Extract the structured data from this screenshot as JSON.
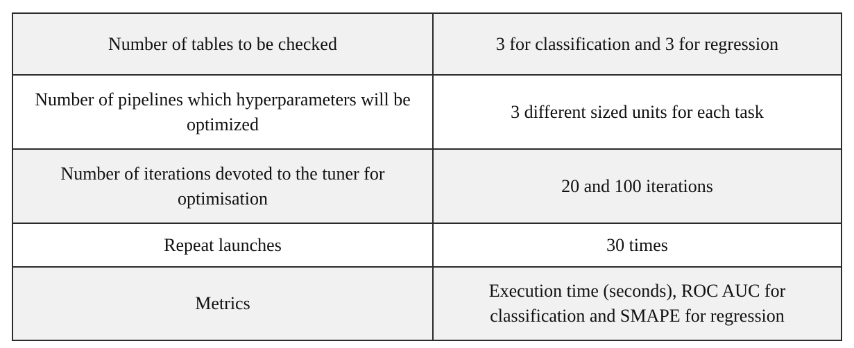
{
  "table": {
    "rows": [
      {
        "label": "Number of tables to be checked",
        "value": "3 for classification and 3 for regression"
      },
      {
        "label": "Number of pipelines which hyperparameters will be optimized",
        "value": "3 different sized units for each task"
      },
      {
        "label": "Number of iterations devoted to the tuner for optimisation",
        "value": "20 and 100 iterations"
      },
      {
        "label": "Repeat launches",
        "value": "30 times"
      },
      {
        "label": "Metrics",
        "value": "Execution time (seconds), ROC AUC for classification and SMAPE for regression"
      }
    ]
  },
  "colors": {
    "shaded_row": "#f1f1f1",
    "plain_row": "#ffffff",
    "border": "#2b2b2b",
    "text": "#111111"
  }
}
